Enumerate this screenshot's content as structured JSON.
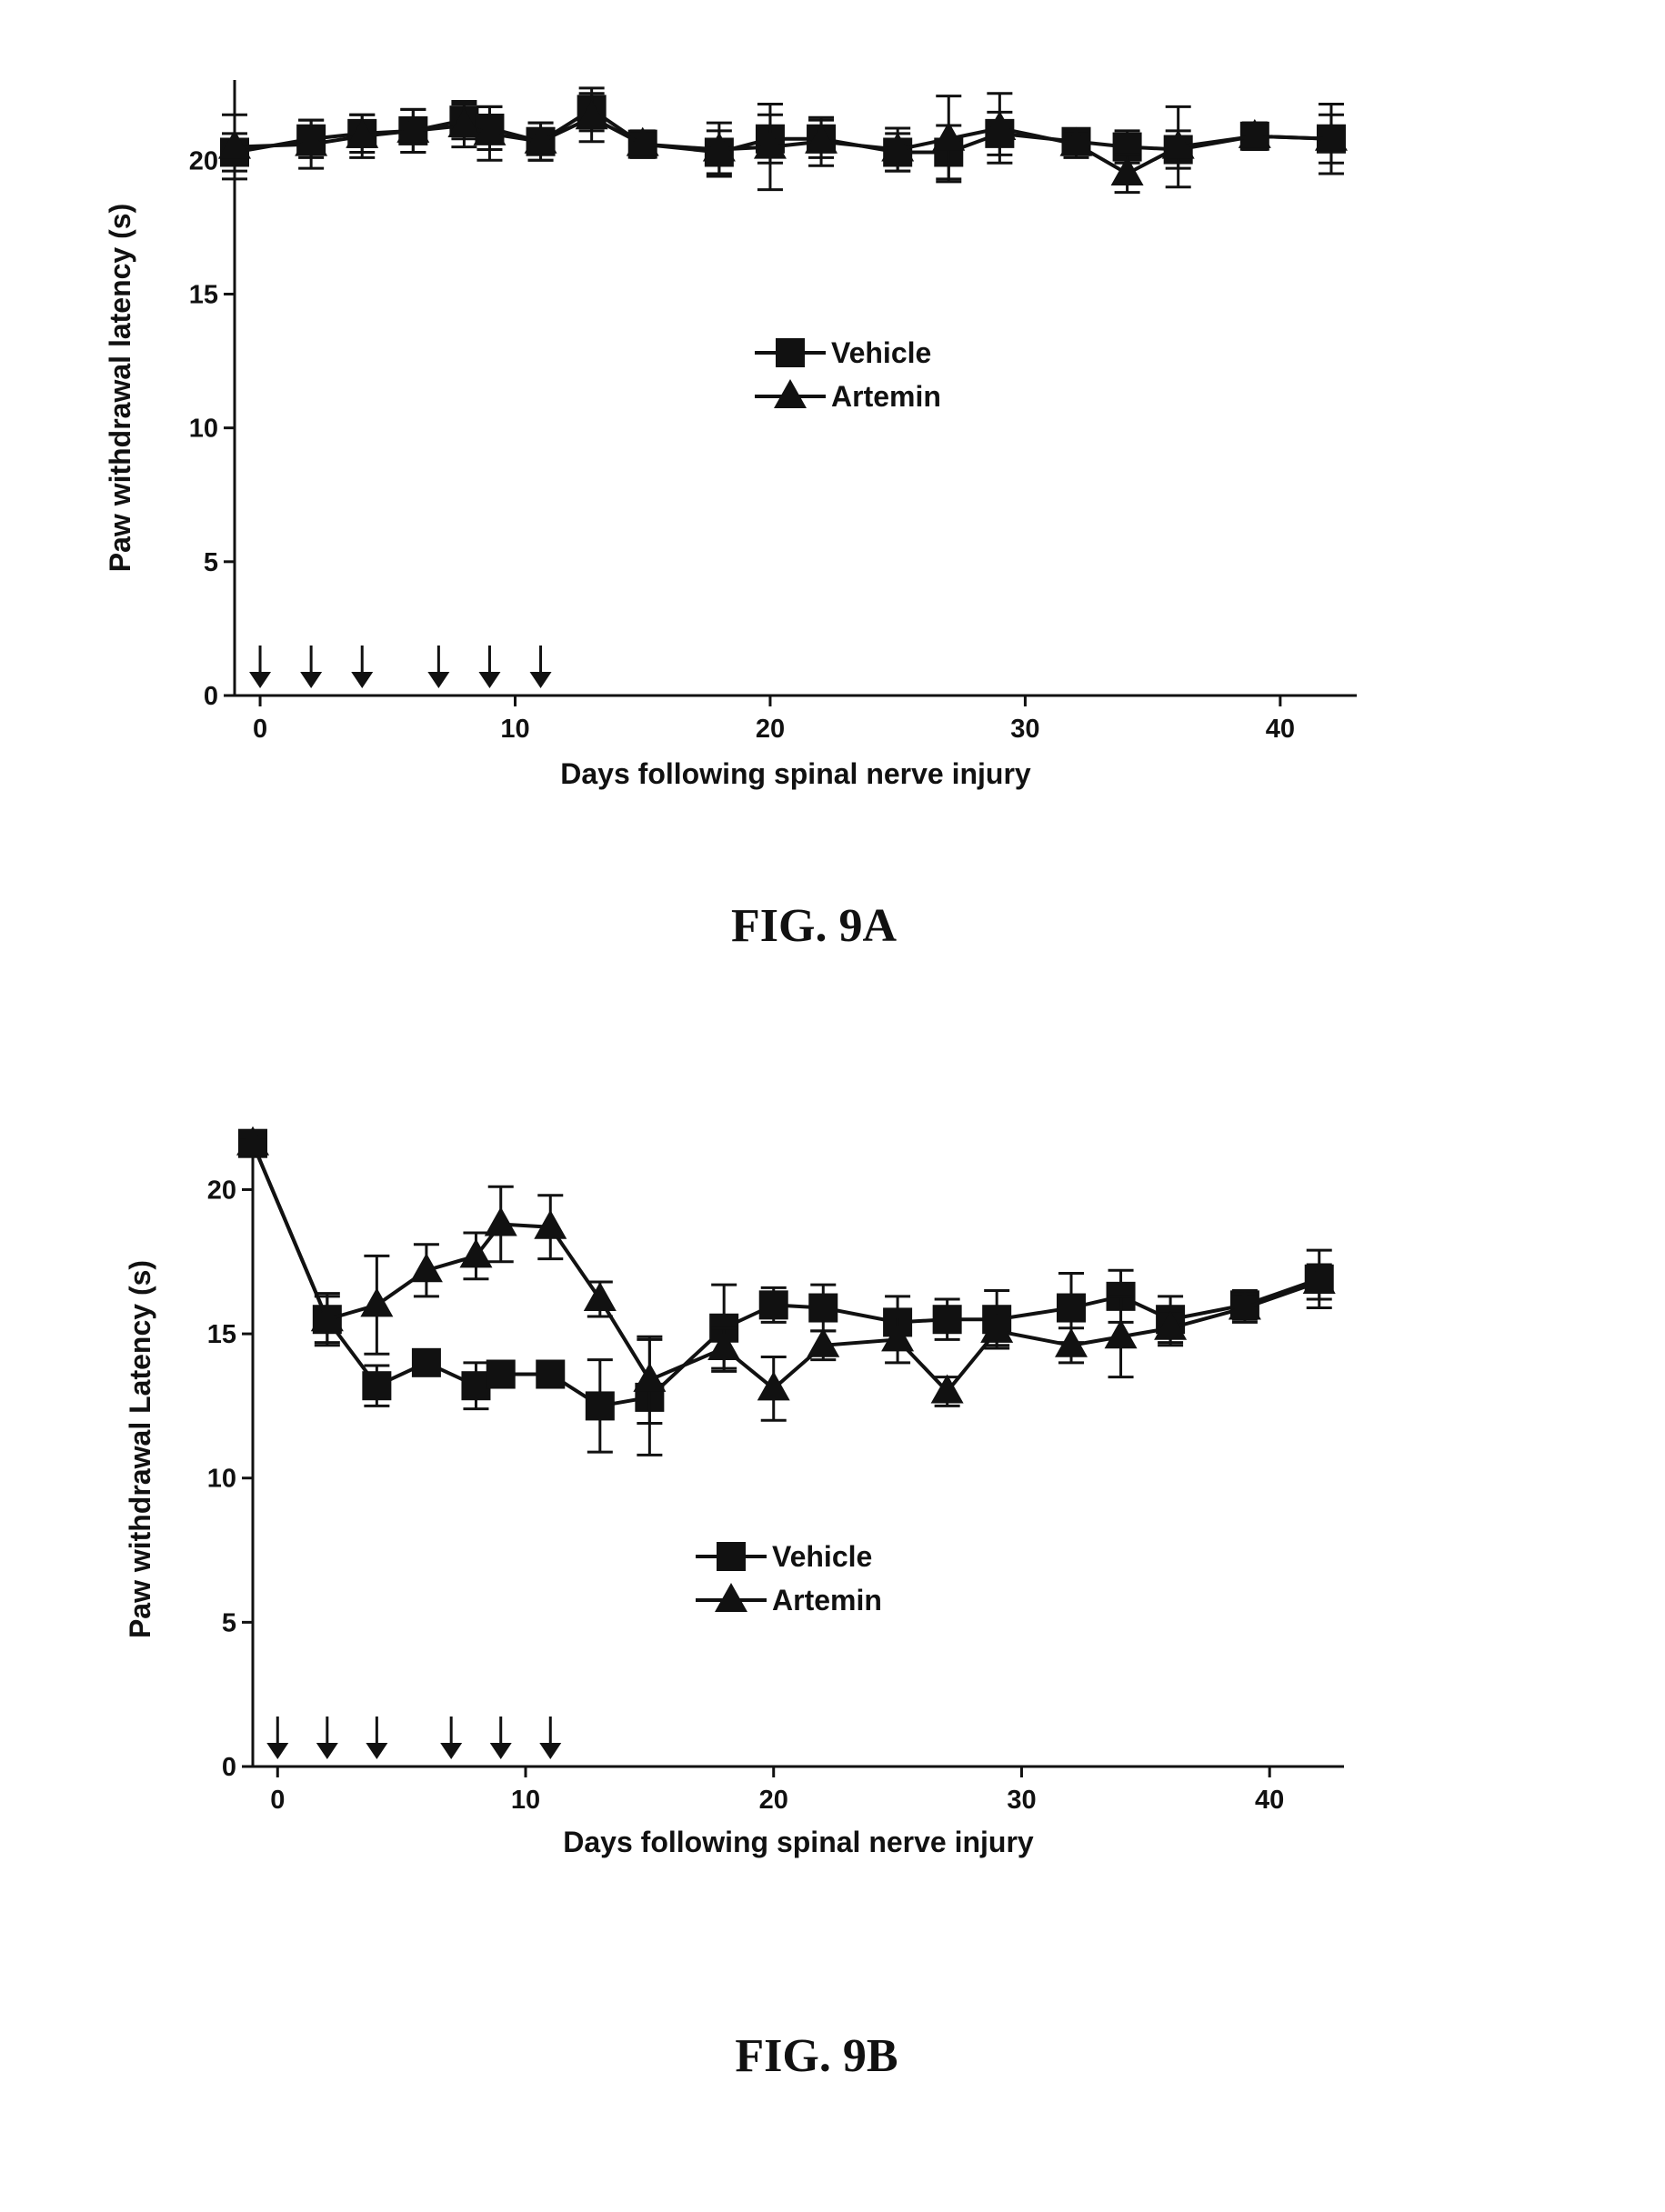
{
  "chart_data": [
    {
      "type": "line",
      "caption": "FIG. 9A",
      "xlabel": "Days following spinal nerve injury",
      "ylabel": "Paw withdrawal latency (s)",
      "xlim": [
        -1,
        43
      ],
      "ylim": [
        0,
        23
      ],
      "xticks": [
        0,
        10,
        20,
        30,
        40
      ],
      "yticks": [
        0,
        5,
        10,
        15,
        20
      ],
      "legend_placement": "center",
      "arrow_days": [
        0,
        2,
        4,
        7,
        9,
        11
      ],
      "series": [
        {
          "name": "Vehicle",
          "marker": "square",
          "x": [
            -1,
            2,
            4,
            6,
            8,
            9,
            11,
            13,
            15,
            18,
            20,
            22,
            25,
            27,
            29,
            32,
            34,
            36,
            39,
            42
          ],
          "y": [
            20.3,
            20.8,
            21.0,
            21.1,
            21.5,
            21.2,
            20.7,
            21.9,
            20.6,
            20.3,
            20.8,
            20.8,
            20.3,
            20.3,
            21.0,
            20.7,
            20.5,
            20.4,
            20.9,
            20.8
          ],
          "err": [
            0.7,
            0.7,
            0.7,
            0.8,
            0.7,
            0.8,
            0.7,
            0.8,
            0.4,
            0.8,
            0.9,
            0.7,
            0.7,
            1.0,
            0.8,
            0.4,
            0.6,
            0.7,
            0.5,
            0.9
          ]
        },
        {
          "name": "Artemin",
          "marker": "triangle",
          "x": [
            -1,
            2,
            4,
            6,
            8,
            9,
            11,
            13,
            15,
            18,
            20,
            22,
            25,
            27,
            29,
            32,
            34,
            36,
            39,
            42
          ],
          "y": [
            20.5,
            20.6,
            20.9,
            21.1,
            21.3,
            21.0,
            20.7,
            21.6,
            20.6,
            20.4,
            20.5,
            20.7,
            20.4,
            20.8,
            21.2,
            20.6,
            19.5,
            20.5,
            20.9,
            20.8
          ],
          "err": [
            1.2,
            0.9,
            0.8,
            0.8,
            0.8,
            1.0,
            0.7,
            0.9,
            0.5,
            1.0,
            1.6,
            0.9,
            0.8,
            1.6,
            1.3,
            0.5,
            0.7,
            1.5,
            0.5,
            1.3
          ]
        }
      ]
    },
    {
      "type": "line",
      "caption": "FIG. 9B",
      "xlabel": "Days following spinal nerve injury",
      "ylabel": "Paw withdrawal Latency (s)",
      "xlim": [
        -1,
        43
      ],
      "ylim": [
        0,
        22
      ],
      "xticks": [
        0,
        10,
        20,
        30,
        40
      ],
      "yticks": [
        0,
        5,
        10,
        15,
        20
      ],
      "legend_placement": "center",
      "arrow_days": [
        0,
        2,
        4,
        7,
        9,
        11
      ],
      "series": [
        {
          "name": "Vehicle",
          "marker": "square",
          "x": [
            -1,
            2,
            4,
            6,
            8,
            9,
            11,
            13,
            15,
            18,
            20,
            22,
            25,
            27,
            29,
            32,
            34,
            36,
            39,
            42
          ],
          "y": [
            21.6,
            15.5,
            13.2,
            14.0,
            13.2,
            13.6,
            13.6,
            12.5,
            12.8,
            15.2,
            16.0,
            15.9,
            15.4,
            15.5,
            15.5,
            15.9,
            16.3,
            15.5,
            16.0,
            16.9
          ],
          "err": [
            0.2,
            0.8,
            0.7,
            0.3,
            0.8,
            0.4,
            0.3,
            1.6,
            2.0,
            1.5,
            0.6,
            0.8,
            0.9,
            0.7,
            1.0,
            1.2,
            0.9,
            0.8,
            0.5,
            1.0
          ]
        },
        {
          "name": "Artemin",
          "marker": "triangle",
          "x": [
            -1,
            2,
            4,
            6,
            8,
            9,
            11,
            13,
            15,
            18,
            20,
            22,
            25,
            27,
            29,
            32,
            34,
            36,
            39,
            42
          ],
          "y": [
            21.6,
            15.5,
            16.0,
            17.2,
            17.7,
            18.8,
            18.7,
            16.2,
            13.4,
            14.5,
            13.1,
            14.6,
            14.8,
            13.0,
            15.1,
            14.6,
            14.9,
            15.2,
            15.9,
            16.8
          ],
          "err": [
            0.2,
            0.9,
            1.7,
            0.9,
            0.8,
            1.3,
            1.1,
            0.6,
            1.5,
            0.7,
            1.1,
            0.5,
            0.8,
            0.5,
            0.5,
            0.6,
            1.4,
            0.6,
            0.5,
            0.6
          ]
        }
      ]
    }
  ]
}
